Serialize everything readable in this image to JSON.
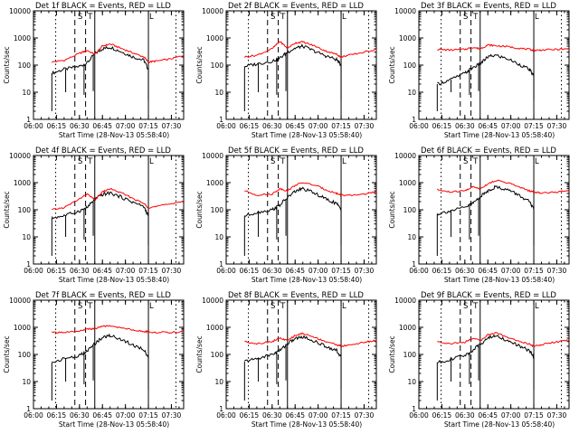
{
  "page": {
    "x_axis_title": "Start Time (28-Nov-13 05:58:40)",
    "y_axis_title": "Counts/sec"
  },
  "legend_suffix": "BLACK = Events, RED = LLD",
  "colors": {
    "events": "#000000",
    "lld": "#ff0000"
  },
  "markers": [
    "S",
    "T",
    "L"
  ],
  "y_ticks": [
    "1",
    "10",
    "100",
    "1000",
    "10000"
  ],
  "x_ticks": [
    "06:00",
    "06:15",
    "06:30",
    "06:45",
    "07:00",
    "07:15",
    "07:30"
  ],
  "chart_data": [
    {
      "type": "line",
      "title": "Det 1f BLACK = Events, RED = LLD",
      "xlabel": "Start Time (28-Nov-13 05:58:40)",
      "ylabel": "Counts/sec",
      "xlim": [
        "06:00",
        "07:38"
      ],
      "ylim": [
        1,
        10000
      ],
      "yscale": "log",
      "x": [
        "06:12",
        "06:20",
        "06:30",
        "06:35",
        "06:40",
        "06:45",
        "06:50",
        "06:58",
        "07:05",
        "07:12",
        "07:15",
        "07:20",
        "07:30",
        "07:38"
      ],
      "series": [
        {
          "name": "Events",
          "values": [
            50,
            70,
            90,
            120,
            260,
            400,
            460,
            300,
            200,
            150,
            70,
            null,
            null,
            null
          ]
        },
        {
          "name": "LLD",
          "values": [
            130,
            150,
            270,
            350,
            250,
            500,
            600,
            400,
            280,
            200,
            130,
            140,
            170,
            230
          ]
        }
      ]
    },
    {
      "type": "line",
      "title": "Det 2f BLACK = Events, RED = LLD",
      "xlabel": "Start Time (28-Nov-13 05:58:40)",
      "ylabel": "Counts/sec",
      "xlim": [
        "06:00",
        "07:38"
      ],
      "ylim": [
        1,
        10000
      ],
      "yscale": "log",
      "x": [
        "06:12",
        "06:20",
        "06:30",
        "06:35",
        "06:40",
        "06:45",
        "06:50",
        "06:58",
        "07:05",
        "07:12",
        "07:15",
        "07:20",
        "07:30",
        "07:38"
      ],
      "series": [
        {
          "name": "Events",
          "values": [
            90,
            110,
            140,
            180,
            300,
            420,
            500,
            320,
            220,
            160,
            100,
            null,
            null,
            null
          ]
        },
        {
          "name": "LLD",
          "values": [
            200,
            230,
            400,
            750,
            420,
            650,
            720,
            500,
            330,
            250,
            200,
            230,
            300,
            380
          ]
        }
      ]
    },
    {
      "type": "line",
      "title": "Det 3f BLACK = Events, RED = LLD",
      "xlabel": "Start Time (28-Nov-13 05:58:40)",
      "ylabel": "Counts/sec",
      "xlim": [
        "06:00",
        "07:38"
      ],
      "ylim": [
        1,
        10000
      ],
      "yscale": "log",
      "x": [
        "06:12",
        "06:20",
        "06:30",
        "06:35",
        "06:40",
        "06:45",
        "06:50",
        "06:58",
        "07:05",
        "07:12",
        "07:15",
        "07:20",
        "07:30",
        "07:38"
      ],
      "series": [
        {
          "name": "Events",
          "values": [
            20,
            28,
            50,
            80,
            110,
            200,
            230,
            170,
            110,
            70,
            40,
            null,
            null,
            null
          ]
        },
        {
          "name": "LLD",
          "values": [
            380,
            360,
            380,
            450,
            400,
            550,
            520,
            480,
            420,
            380,
            350,
            360,
            380,
            390
          ]
        }
      ]
    },
    {
      "type": "line",
      "title": "Det 4f BLACK = Events, RED = LLD",
      "xlabel": "Start Time (28-Nov-13 05:58:40)",
      "ylabel": "Counts/sec",
      "xlim": [
        "06:00",
        "07:38"
      ],
      "ylim": [
        1,
        10000
      ],
      "yscale": "log",
      "x": [
        "06:12",
        "06:20",
        "06:30",
        "06:35",
        "06:40",
        "06:45",
        "06:50",
        "06:58",
        "07:05",
        "07:12",
        "07:15",
        "07:20",
        "07:30",
        "07:38"
      ],
      "series": [
        {
          "name": "Events",
          "values": [
            50,
            60,
            90,
            120,
            240,
            360,
            420,
            280,
            190,
            130,
            60,
            null,
            null,
            null
          ]
        },
        {
          "name": "LLD",
          "values": [
            100,
            120,
            250,
            380,
            230,
            450,
            600,
            400,
            260,
            170,
            120,
            130,
            170,
            210
          ]
        }
      ]
    },
    {
      "type": "line",
      "title": "Det 5f BLACK = Events, RED = LLD",
      "xlabel": "Start Time (28-Nov-13 05:58:40)",
      "ylabel": "Counts/sec",
      "xlim": [
        "06:00",
        "07:38"
      ],
      "ylim": [
        1,
        10000
      ],
      "yscale": "log",
      "x": [
        "06:12",
        "06:20",
        "06:30",
        "06:35",
        "06:40",
        "06:45",
        "06:50",
        "06:58",
        "07:05",
        "07:12",
        "07:15",
        "07:20",
        "07:30",
        "07:38"
      ],
      "series": [
        {
          "name": "Events",
          "values": [
            60,
            80,
            100,
            150,
            280,
            480,
            600,
            400,
            250,
            170,
            100,
            null,
            null,
            null
          ]
        },
        {
          "name": "LLD",
          "values": [
            500,
            350,
            380,
            600,
            500,
            800,
            1000,
            800,
            550,
            400,
            350,
            330,
            380,
            450
          ]
        }
      ]
    },
    {
      "type": "line",
      "title": "Det 6f BLACK = Events, RED = LLD",
      "xlabel": "Start Time (28-Nov-13 05:58:40)",
      "ylabel": "Counts/sec",
      "xlim": [
        "06:00",
        "07:38"
      ],
      "ylim": [
        1,
        10000
      ],
      "yscale": "log",
      "x": [
        "06:12",
        "06:20",
        "06:30",
        "06:35",
        "06:40",
        "06:45",
        "06:50",
        "06:58",
        "07:05",
        "07:12",
        "07:15",
        "07:20",
        "07:30",
        "07:38"
      ],
      "series": [
        {
          "name": "Events",
          "values": [
            70,
            90,
            120,
            170,
            300,
            500,
            700,
            550,
            350,
            200,
            100,
            null,
            null,
            null
          ]
        },
        {
          "name": "LLD",
          "values": [
            550,
            450,
            500,
            700,
            600,
            900,
            1200,
            1000,
            700,
            500,
            450,
            420,
            450,
            500
          ]
        }
      ]
    },
    {
      "type": "line",
      "title": "Det 7f BLACK = Events, RED = LLD",
      "xlabel": "Start Time (28-Nov-13 05:58:40)",
      "ylabel": "Counts/sec",
      "xlim": [
        "06:00",
        "07:38"
      ],
      "ylim": [
        1,
        10000
      ],
      "yscale": "log",
      "x": [
        "06:12",
        "06:20",
        "06:30",
        "06:35",
        "06:40",
        "06:45",
        "06:50",
        "06:58",
        "07:05",
        "07:12",
        "07:15",
        "07:20",
        "07:30",
        "07:38"
      ],
      "series": [
        {
          "name": "Events",
          "values": [
            50,
            70,
            90,
            130,
            250,
            420,
            500,
            350,
            220,
            150,
            80,
            null,
            null,
            null
          ]
        },
        {
          "name": "LLD",
          "values": [
            650,
            650,
            700,
            850,
            900,
            1100,
            1100,
            950,
            800,
            700,
            680,
            650,
            650,
            700
          ]
        }
      ]
    },
    {
      "type": "line",
      "title": "Det 8f BLACK = Events, RED = LLD",
      "xlabel": "Start Time (28-Nov-13 05:58:40)",
      "ylabel": "Counts/sec",
      "xlim": [
        "06:00",
        "07:38"
      ],
      "ylim": [
        1,
        10000
      ],
      "yscale": "log",
      "x": [
        "06:12",
        "06:20",
        "06:30",
        "06:35",
        "06:40",
        "06:45",
        "06:50",
        "06:58",
        "07:05",
        "07:12",
        "07:15",
        "07:20",
        "07:30",
        "07:38"
      ],
      "series": [
        {
          "name": "Events",
          "values": [
            55,
            70,
            100,
            140,
            250,
            380,
            450,
            300,
            200,
            140,
            80,
            null,
            null,
            null
          ]
        },
        {
          "name": "LLD",
          "values": [
            300,
            250,
            300,
            400,
            320,
            500,
            600,
            420,
            300,
            230,
            200,
            220,
            280,
            330
          ]
        }
      ]
    },
    {
      "type": "line",
      "title": "Det 9f BLACK = Events, RED = LLD",
      "xlabel": "Start Time (28-Nov-13 05:58:40)",
      "ylabel": "Counts/sec",
      "xlim": [
        "06:00",
        "07:38"
      ],
      "ylim": [
        1,
        10000
      ],
      "yscale": "log",
      "x": [
        "06:12",
        "06:20",
        "06:30",
        "06:35",
        "06:40",
        "06:45",
        "06:50",
        "06:58",
        "07:05",
        "07:12",
        "07:15",
        "07:20",
        "07:30",
        "07:38"
      ],
      "series": [
        {
          "name": "Events",
          "values": [
            50,
            65,
            90,
            140,
            240,
            400,
            500,
            320,
            210,
            140,
            80,
            null,
            null,
            null
          ]
        },
        {
          "name": "LLD",
          "values": [
            300,
            250,
            280,
            400,
            320,
            520,
            620,
            430,
            310,
            240,
            200,
            230,
            290,
            340
          ]
        }
      ]
    }
  ]
}
